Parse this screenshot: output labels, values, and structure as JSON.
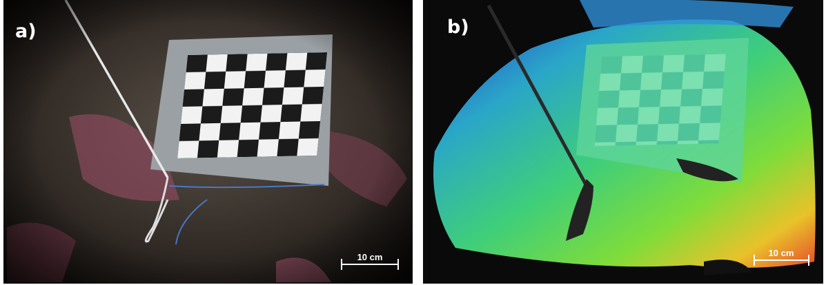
{
  "panels": [
    {
      "label": "a)",
      "scale_bar": "10 cm"
    },
    {
      "label": "b)",
      "scale_bar": "10 cm"
    }
  ]
}
